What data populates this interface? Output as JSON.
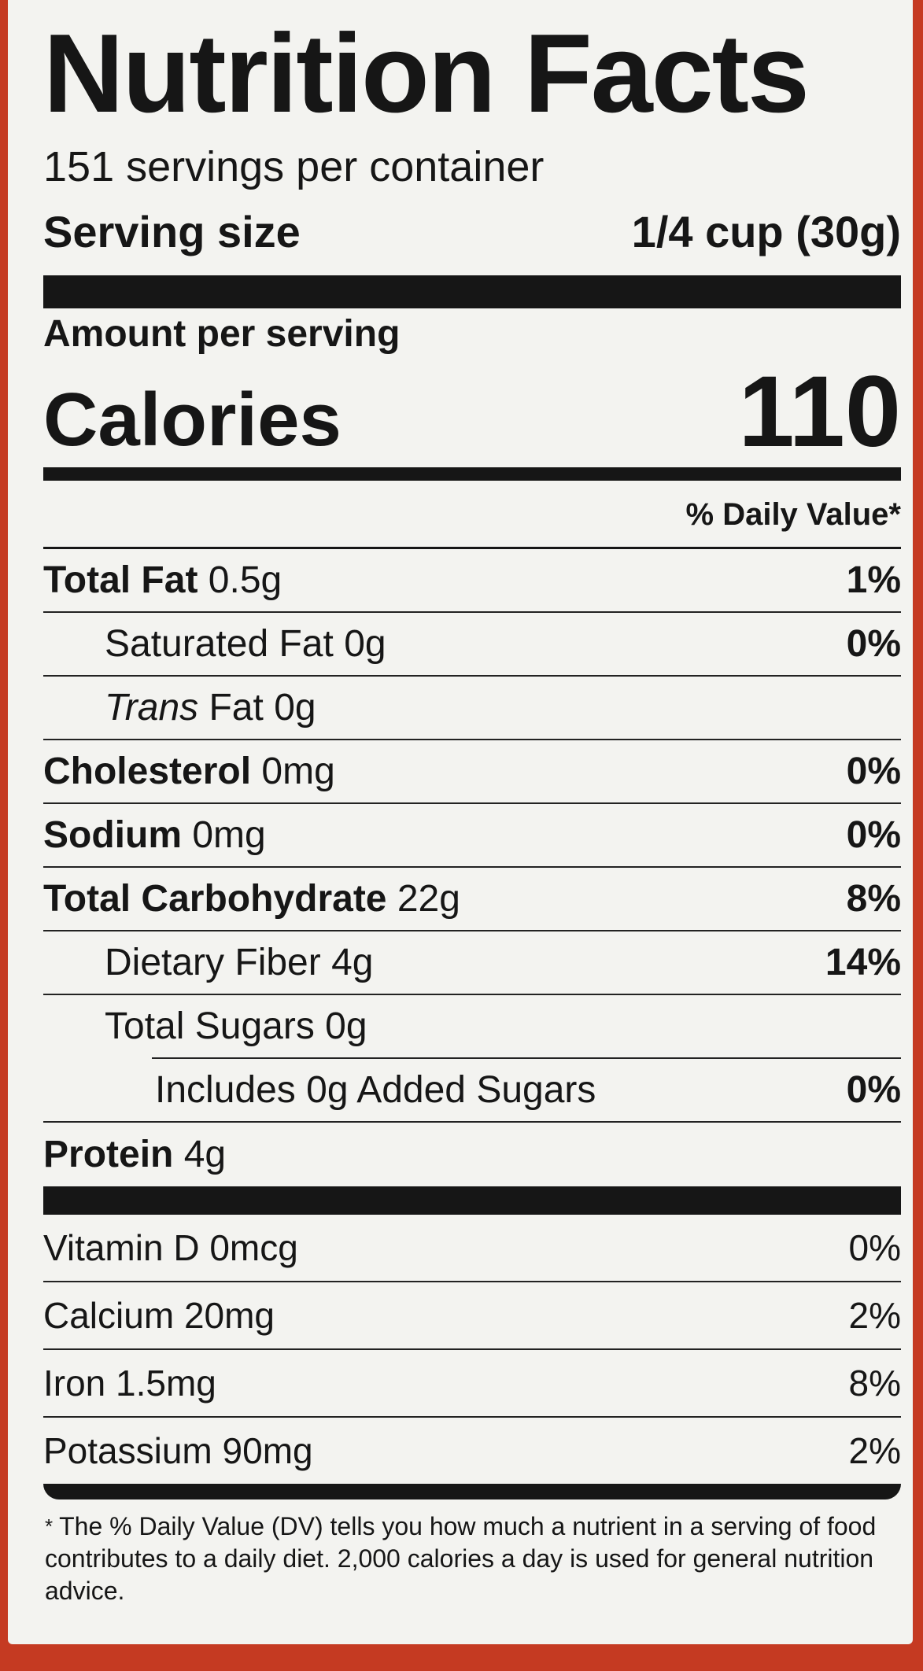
{
  "title": "Nutrition Facts",
  "servings_per_container": "151 servings per container",
  "serving_size": {
    "label": "Serving size",
    "value": "1/4 cup (30g)"
  },
  "amount_per_serving": "Amount per serving",
  "calories": {
    "label": "Calories",
    "value": "110"
  },
  "daily_value_header": "% Daily Value*",
  "nutrients": [
    {
      "name": "Total Fat",
      "amount": "0.5g",
      "dv": "1%"
    },
    {
      "name": "Saturated Fat",
      "amount": "0g",
      "dv": "0%"
    },
    {
      "name": "Trans",
      "name_suffix": "Fat",
      "amount": "0g",
      "dv": ""
    },
    {
      "name": "Cholesterol",
      "amount": "0mg",
      "dv": "0%"
    },
    {
      "name": "Sodium",
      "amount": "0mg",
      "dv": "0%"
    },
    {
      "name": "Total Carbohydrate",
      "amount": "22g",
      "dv": "8%"
    },
    {
      "name": "Dietary Fiber",
      "amount": "4g",
      "dv": "14%"
    },
    {
      "name": "Total Sugars",
      "amount": "0g",
      "dv": ""
    },
    {
      "name": "Includes 0g Added Sugars",
      "amount": "",
      "dv": "0%"
    },
    {
      "name": "Protein",
      "amount": "4g",
      "dv": ""
    }
  ],
  "vitamins": [
    {
      "name": "Vitamin D",
      "amount": "0mcg",
      "dv": "0%"
    },
    {
      "name": "Calcium",
      "amount": "20mg",
      "dv": "2%"
    },
    {
      "name": "Iron",
      "amount": "1.5mg",
      "dv": "8%"
    },
    {
      "name": "Potassium",
      "amount": "90mg",
      "dv": "2%"
    }
  ],
  "footnote": {
    "star": "*",
    "text": "The % Daily Value (DV) tells you how much a nutrient in a serving of food contributes to a daily diet. 2,000 calories a day is used for general nutrition advice."
  },
  "colors": {
    "background": "#c53a22",
    "label": "#f3f3f0",
    "ink": "#161616"
  }
}
